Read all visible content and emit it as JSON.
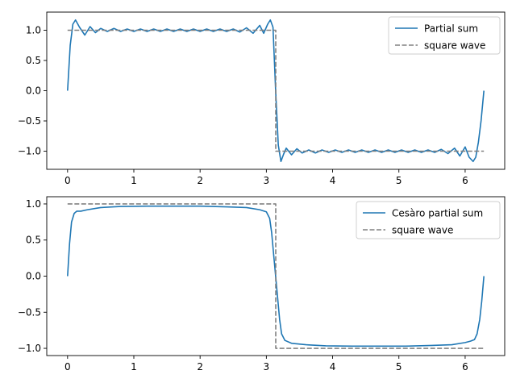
{
  "chart_data": [
    {
      "type": "line",
      "title": "",
      "xlabel": "",
      "ylabel": "",
      "xlim": [
        -0.314,
        6.597
      ],
      "ylim": [
        -1.3,
        1.3
      ],
      "xticks": [
        0,
        1,
        2,
        3,
        4,
        5,
        6
      ],
      "xtick_labels": [
        "0",
        "1",
        "2",
        "3",
        "4",
        "5",
        "6"
      ],
      "yticks": [
        -1.0,
        -0.5,
        0.0,
        0.5,
        1.0
      ],
      "ytick_labels": [
        "−1.0",
        "−0.5",
        "0.0",
        "0.5",
        "1.0"
      ],
      "grid": false,
      "legend_position": "upper right",
      "series": [
        {
          "name": "Partial sum",
          "color": "#1f77b4",
          "style": "solid",
          "x": [
            0.0,
            0.04,
            0.08,
            0.12,
            0.18,
            0.26,
            0.34,
            0.42,
            0.5,
            0.6,
            0.7,
            0.8,
            0.9,
            1.0,
            1.1,
            1.2,
            1.3,
            1.4,
            1.5,
            1.6,
            1.7,
            1.8,
            1.9,
            2.0,
            2.1,
            2.2,
            2.3,
            2.4,
            2.5,
            2.6,
            2.7,
            2.8,
            2.9,
            2.96,
            3.02,
            3.06,
            3.1,
            3.14,
            3.18,
            3.22,
            3.26,
            3.3,
            3.38,
            3.46,
            3.54,
            3.64,
            3.74,
            3.84,
            3.94,
            4.04,
            4.14,
            4.24,
            4.34,
            4.44,
            4.54,
            4.64,
            4.74,
            4.84,
            4.94,
            5.04,
            5.14,
            5.24,
            5.34,
            5.44,
            5.54,
            5.64,
            5.74,
            5.84,
            5.92,
            6.0,
            6.06,
            6.12,
            6.16,
            6.2,
            6.24,
            6.283
          ],
          "y": [
            0.0,
            0.75,
            1.1,
            1.17,
            1.05,
            0.92,
            1.06,
            0.96,
            1.03,
            0.98,
            1.03,
            0.98,
            1.02,
            0.98,
            1.02,
            0.98,
            1.02,
            0.98,
            1.02,
            0.98,
            1.02,
            0.98,
            1.02,
            0.98,
            1.02,
            0.98,
            1.02,
            0.98,
            1.02,
            0.97,
            1.04,
            0.95,
            1.08,
            0.95,
            1.1,
            1.17,
            1.05,
            0.0,
            -0.9,
            -1.17,
            -1.05,
            -0.95,
            -1.06,
            -0.96,
            -1.03,
            -0.98,
            -1.03,
            -0.98,
            -1.02,
            -0.98,
            -1.02,
            -0.98,
            -1.02,
            -0.98,
            -1.02,
            -0.98,
            -1.02,
            -0.98,
            -1.02,
            -0.98,
            -1.02,
            -0.98,
            -1.02,
            -0.98,
            -1.02,
            -0.97,
            -1.04,
            -0.95,
            -1.08,
            -0.93,
            -1.1,
            -1.17,
            -1.1,
            -0.85,
            -0.5,
            0.0
          ]
        },
        {
          "name": "square wave",
          "color": "#808080",
          "style": "dashed",
          "x": [
            0.0,
            3.1416,
            3.1416,
            6.283
          ],
          "y": [
            1.0,
            1.0,
            -1.0,
            -1.0
          ]
        }
      ]
    },
    {
      "type": "line",
      "title": "",
      "xlabel": "",
      "ylabel": "",
      "xlim": [
        -0.314,
        6.597
      ],
      "ylim": [
        -1.1,
        1.1
      ],
      "xticks": [
        0,
        1,
        2,
        3,
        4,
        5,
        6
      ],
      "xtick_labels": [
        "0",
        "1",
        "2",
        "3",
        "4",
        "5",
        "6"
      ],
      "yticks": [
        -1.0,
        -0.5,
        0.0,
        0.5,
        1.0
      ],
      "ytick_labels": [
        "−1.0",
        "−0.5",
        "0.0",
        "0.5",
        "1.0"
      ],
      "grid": false,
      "legend_position": "upper right",
      "series": [
        {
          "name": "Cesàro partial sum",
          "color": "#1f77b4",
          "style": "solid",
          "x": [
            0.0,
            0.03,
            0.06,
            0.1,
            0.14,
            0.2,
            0.3,
            0.5,
            0.8,
            1.2,
            1.6,
            2.0,
            2.4,
            2.7,
            2.9,
            3.0,
            3.05,
            3.08,
            3.11,
            3.14,
            3.17,
            3.2,
            3.23,
            3.28,
            3.38,
            3.6,
            3.9,
            4.3,
            4.7,
            5.1,
            5.5,
            5.8,
            6.0,
            6.08,
            6.14,
            6.18,
            6.22,
            6.25,
            6.283
          ],
          "y": [
            0.0,
            0.45,
            0.75,
            0.87,
            0.9,
            0.9,
            0.92,
            0.95,
            0.965,
            0.97,
            0.97,
            0.97,
            0.96,
            0.95,
            0.92,
            0.89,
            0.8,
            0.6,
            0.3,
            0.0,
            -0.3,
            -0.6,
            -0.8,
            -0.89,
            -0.93,
            -0.95,
            -0.965,
            -0.97,
            -0.97,
            -0.97,
            -0.96,
            -0.95,
            -0.92,
            -0.9,
            -0.88,
            -0.8,
            -0.6,
            -0.35,
            0.0
          ]
        },
        {
          "name": "square wave",
          "color": "#808080",
          "style": "dashed",
          "x": [
            0.0,
            3.1416,
            3.1416,
            6.283
          ],
          "y": [
            1.0,
            1.0,
            -1.0,
            -1.0
          ]
        }
      ]
    }
  ]
}
